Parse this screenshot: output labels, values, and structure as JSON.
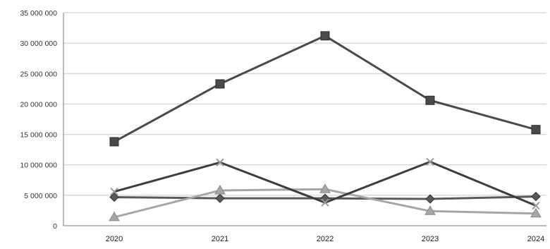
{
  "chart_data": {
    "type": "line",
    "title": "",
    "xlabel": "",
    "ylabel": "",
    "categories": [
      "2020",
      "2021",
      "2022",
      "2023",
      "2024"
    ],
    "y_ticks": [
      "0",
      "5 000 000",
      "10 000 000",
      "15 000 000",
      "20 000 000",
      "25 000 000",
      "30 000 000",
      "35 000 000"
    ],
    "ylim": [
      0,
      35000000
    ],
    "grid": true,
    "legend": "none",
    "series": [
      {
        "color": "#5a5a5a",
        "marker": "diamond",
        "values": [
          4700000,
          4500000,
          4500000,
          4400000,
          4800000
        ]
      },
      {
        "color": "#4a4a4a",
        "marker": "square",
        "values": [
          13800000,
          23300000,
          31200000,
          20600000,
          15800000
        ]
      },
      {
        "color": "#a6a6a6",
        "marker": "triangle",
        "values": [
          1400000,
          5800000,
          6000000,
          2400000,
          2000000
        ]
      },
      {
        "color": "#3d3d3d",
        "marker": "x",
        "values": [
          5600000,
          10400000,
          3800000,
          10500000,
          3300000
        ]
      }
    ]
  }
}
